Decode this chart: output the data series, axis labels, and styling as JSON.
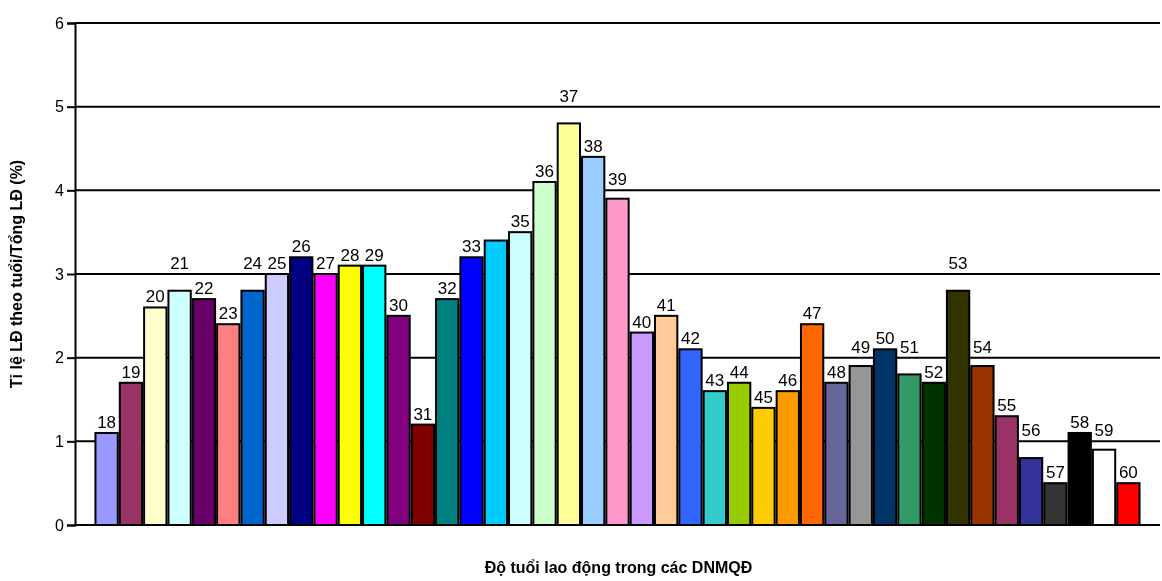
{
  "chart_data": {
    "type": "bar",
    "xlabel": "Độ tuổi lao động trong các DNMQĐ",
    "ylabel": "Tỉ lệ LĐ theo tuổi/Tổng LĐ (%)",
    "categories": [
      "18",
      "19",
      "20",
      "21",
      "22",
      "23",
      "24",
      "25",
      "26",
      "27",
      "28",
      "29",
      "30",
      "31",
      "32",
      "33",
      null,
      "35",
      "36",
      "37",
      "38",
      "39",
      "40",
      "41",
      "42",
      "43",
      "44",
      "45",
      "46",
      "47",
      "48",
      "49",
      "50",
      "51",
      "52",
      "53",
      "54",
      "55",
      "56",
      "57",
      "58",
      "59",
      "60"
    ],
    "values": [
      1.1,
      1.7,
      2.6,
      2.8,
      2.7,
      2.4,
      2.8,
      3.0,
      3.2,
      3.0,
      3.1,
      3.1,
      2.5,
      1.2,
      2.7,
      3.2,
      3.4,
      3.5,
      4.1,
      4.8,
      4.4,
      3.9,
      2.3,
      2.5,
      2.1,
      1.6,
      1.7,
      1.4,
      1.6,
      2.4,
      1.7,
      1.9,
      2.1,
      1.8,
      1.7,
      2.8,
      1.9,
      1.3,
      0.8,
      0.5,
      1.1,
      0.9,
      0.5
    ],
    "colors": [
      "#9999ff",
      "#993366",
      "#ffffcc",
      "#ccffff",
      "#660066",
      "#ff8080",
      "#0066cc",
      "#ccccff",
      "#000080",
      "#ff00ff",
      "#ffff00",
      "#00ffff",
      "#800080",
      "#800000",
      "#008080",
      "#0000ff",
      "#00ccff",
      "#ccffff",
      "#ccffcc",
      "#ffff99",
      "#99ccff",
      "#ff99cc",
      "#cc99ff",
      "#ffcc99",
      "#3366ff",
      "#33cccc",
      "#99cc00",
      "#ffcc00",
      "#ff9900",
      "#ff6600",
      "#666699",
      "#969696",
      "#003366",
      "#339966",
      "#003300",
      "#333300",
      "#993300",
      "#993366",
      "#333399",
      "#333333",
      "#000000",
      "#ffffff",
      "#ff0000"
    ],
    "ylim": [
      0,
      6
    ],
    "yticks": [
      0,
      1,
      2,
      3,
      4,
      5,
      6
    ],
    "grid": "y"
  }
}
